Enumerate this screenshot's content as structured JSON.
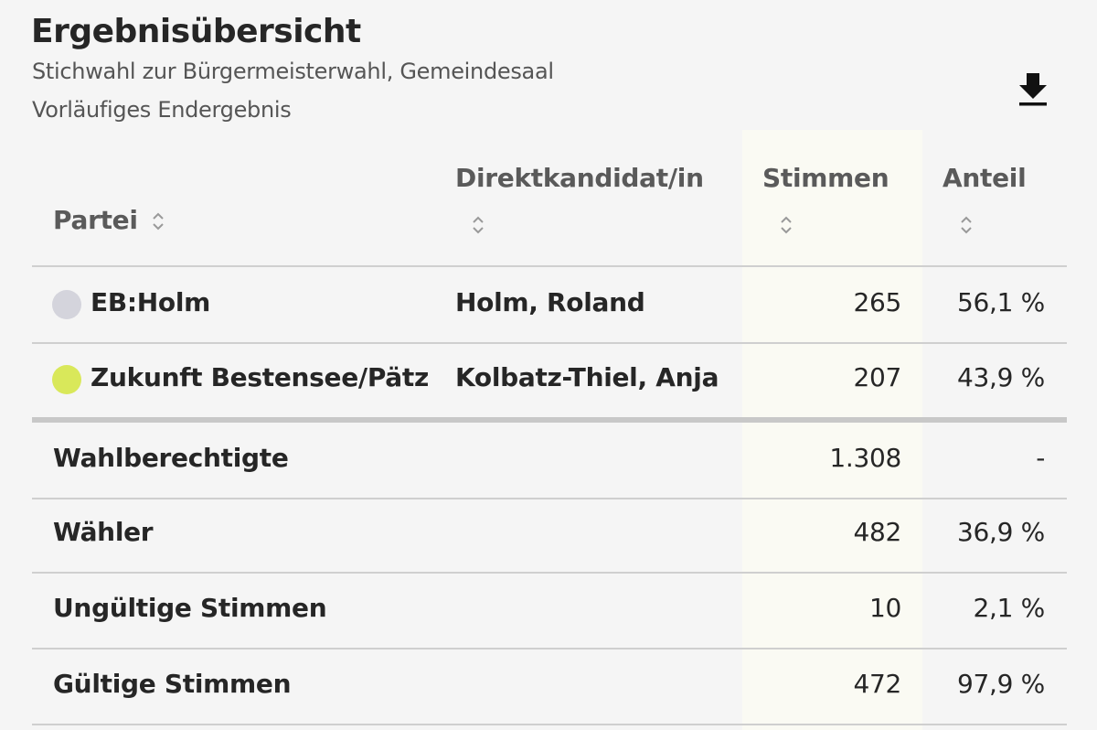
{
  "header": {
    "title": "Ergebnisübersicht",
    "subtitle": "Stichwahl zur Bürgermeisterwahl, Gemeindesaal",
    "status": "Vorläufiges Endergebnis",
    "download_icon": "download-icon"
  },
  "table": {
    "columns": {
      "partei": "Partei",
      "kandidat": "Direktkandidat/in",
      "stimmen": "Stimmen",
      "anteil": "Anteil"
    },
    "rows": [
      {
        "partei": "EB:Holm",
        "kandidat": "Holm, Roland",
        "stimmen": "265",
        "anteil": "56,1 %",
        "color": "#d4d4dc"
      },
      {
        "partei": "Zukunft Bestensee/Pätz",
        "kandidat": "Kolbatz-Thiel, Anja",
        "stimmen": "207",
        "anteil": "43,9 %",
        "color": "#d9e85a"
      }
    ],
    "summary": [
      {
        "label": "Wahlberechtigte",
        "stimmen": "1.308",
        "anteil": "-"
      },
      {
        "label": "Wähler",
        "stimmen": "482",
        "anteil": "36,9 %"
      },
      {
        "label": "Ungültige Stimmen",
        "stimmen": "10",
        "anteil": "2,1 %"
      },
      {
        "label": "Gültige Stimmen",
        "stimmen": "472",
        "anteil": "97,9 %"
      }
    ]
  }
}
